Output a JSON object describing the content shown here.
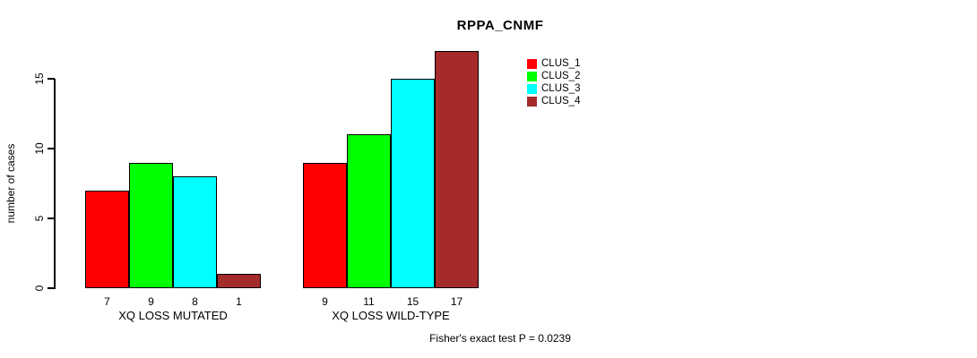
{
  "title": "RPPA_CNMF",
  "footer": "Fisher's exact test P = 0.0239",
  "chart_data": {
    "type": "bar",
    "title": "RPPA_CNMF",
    "xlabel": "",
    "ylabel": "number of cases",
    "ylim": [
      0,
      17
    ],
    "yticks": [
      0,
      5,
      10,
      15
    ],
    "grid": false,
    "legend_position": "top-right",
    "bar_value_labels_shown": true,
    "categories": [
      "XQ LOSS MUTATED",
      "XQ LOSS WILD-TYPE"
    ],
    "series": [
      {
        "name": "CLUS_1",
        "color": "#ff0000",
        "values": [
          7,
          9
        ]
      },
      {
        "name": "CLUS_2",
        "color": "#00ff00",
        "values": [
          9,
          11
        ]
      },
      {
        "name": "CLUS_3",
        "color": "#00ffff",
        "values": [
          8,
          15
        ]
      },
      {
        "name": "CLUS_4",
        "color": "#a52a2a",
        "values": [
          1,
          17
        ]
      }
    ],
    "annotation": "Fisher's exact test P = 0.0239"
  }
}
